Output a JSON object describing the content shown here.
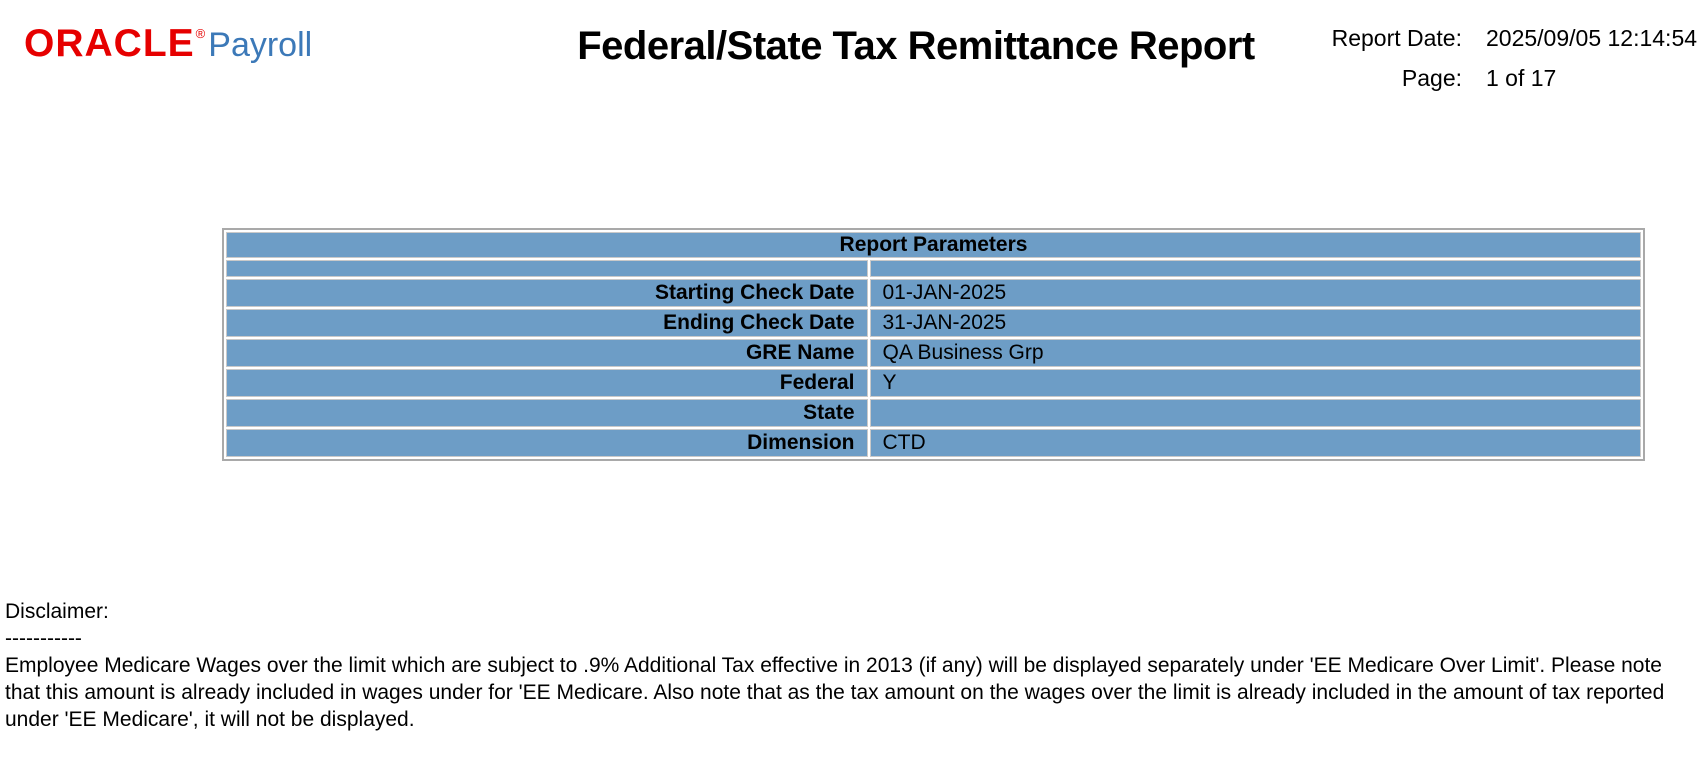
{
  "header": {
    "logo": {
      "brand": "ORACLE",
      "registered_mark": "®",
      "product": "Payroll"
    },
    "title": "Federal/State Tax Remittance Report",
    "meta": {
      "report_date_label": "Report Date:",
      "report_date_value": "2025/09/05 12:14:54",
      "page_label": "Page:",
      "page_value": "1 of 17"
    }
  },
  "report_parameters": {
    "title": "Report Parameters",
    "rows": [
      {
        "label": "Starting Check Date",
        "value": "01-JAN-2025"
      },
      {
        "label": "Ending Check Date",
        "value": "31-JAN-2025"
      },
      {
        "label": "GRE Name",
        "value": "QA Business Grp"
      },
      {
        "label": "Federal",
        "value": "Y"
      },
      {
        "label": "State",
        "value": ""
      },
      {
        "label": "Dimension",
        "value": "CTD"
      }
    ]
  },
  "disclaimer": {
    "heading": "Disclaimer:",
    "underline": "-----------",
    "body": "Employee Medicare Wages over the limit which are subject to .9% Additional Tax effective in 2013 (if any) will be displayed separately under 'EE Medicare Over Limit'. Please note that this amount is already included in wages under for 'EE Medicare. Also note that as the tax amount on the wages over the limit is already included in the amount of tax reported under 'EE Medicare', it will not be displayed."
  },
  "colors": {
    "oracle_red": "#e60000",
    "payroll_blue": "#3c79b8",
    "table_fill_blue": "#6d9dc6",
    "table_border_gray": "#a9a9a9"
  }
}
